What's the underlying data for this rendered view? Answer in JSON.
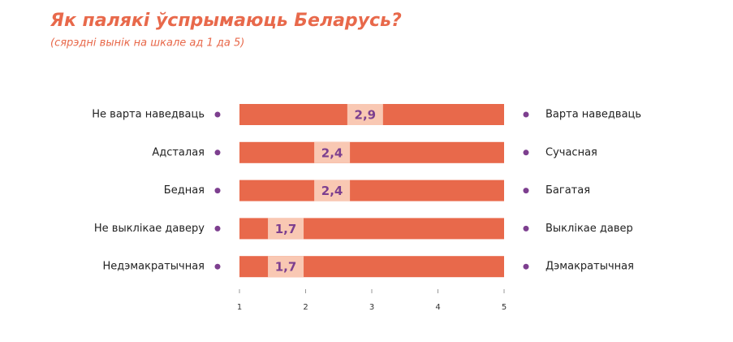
{
  "chart_data": {
    "type": "differential",
    "title": "Як палякі ўспрымаюць Беларусь?",
    "subtitle": "(сярэдні вынік на шкале ад 1 да 5)",
    "categories": [
      "Не варта наведваць",
      "Адсталая",
      "Бедная",
      "Не выклікае даверу",
      "Недэмакратычная"
    ],
    "right_categories": [
      "Варта наведваць",
      "Сучасная",
      "Багатая",
      "Выклікае давер",
      "Дэмакратычная"
    ],
    "values": [
      2.9,
      2.4,
      2.4,
      1.7,
      1.7
    ],
    "value_labels": [
      "2,9",
      "2,4",
      "2,4",
      "1,7",
      "1,7"
    ],
    "xlim": [
      1,
      5
    ],
    "xticks": [
      1,
      2,
      3,
      4,
      5
    ],
    "color": "#e8694b",
    "marker_color": "#f9c8b3",
    "dot_color": "#7d3f8f",
    "title_color": "#e8694b"
  }
}
